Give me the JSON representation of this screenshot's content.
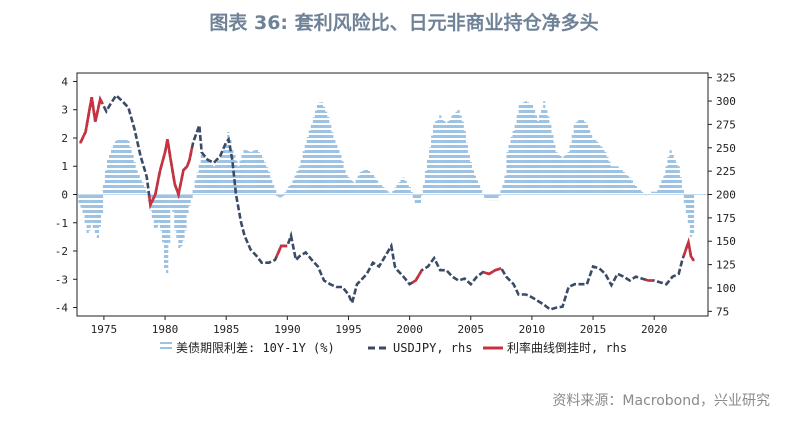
{
  "title": "图表 36: 套利风险比、日元非商业持仓净多头",
  "source": "资料来源：Macrobond，兴业研究",
  "chart_data": {
    "type": "bar+line",
    "xlim": [
      1972.8,
      2024.4
    ],
    "x_ticks": [
      "1975",
      "1980",
      "1985",
      "1990",
      "1995",
      "2000",
      "2005",
      "2010",
      "2015",
      "2020"
    ],
    "left_axis": {
      "ylim": [
        -4.3,
        4.3
      ],
      "ticks": [
        "4",
        "3",
        "2",
        "1",
        "0",
        "-1",
        "-2",
        "-3",
        "-4"
      ]
    },
    "right_axis": {
      "ylim": [
        70,
        330
      ],
      "ticks": [
        "325",
        "300",
        "275",
        "250",
        "225",
        "200",
        "175",
        "150",
        "125",
        "100",
        "75"
      ]
    },
    "legend": {
      "placement": "bottom",
      "entries": [
        "美债期限利差: 10Y-1Y (%)",
        "USDJPY, rhs",
        "利率曲线倒挂时, rhs"
      ]
    },
    "colors": {
      "spread": "#9cc2e3",
      "usdjpy": "#3b4a66",
      "inverted": "#c8323f",
      "title": "#6f8297"
    },
    "series": [
      {
        "name": "美债期限利差: 10Y-1Y (%)",
        "axis": "left",
        "style": "striped-bar",
        "x": [
          1973.0,
          1973.3,
          1973.7,
          1974.0,
          1974.5,
          1974.9,
          1975.0,
          1975.3,
          1975.7,
          1976.0,
          1976.5,
          1977.0,
          1977.3,
          1977.7,
          1978.2,
          1978.5,
          1978.8,
          1979.2,
          1979.5,
          1979.8,
          1980.1,
          1980.3,
          1980.55,
          1980.8,
          1981.2,
          1981.6,
          1981.9,
          1982.1,
          1982.5,
          1982.8,
          1983.0,
          1983.5,
          1984.0,
          1984.5,
          1985.0,
          1985.2,
          1985.5,
          1986.0,
          1986.5,
          1987.0,
          1987.5,
          1988.0,
          1988.5,
          1988.9,
          1989.2,
          1989.6,
          1990.0,
          1990.5,
          1991.0,
          1991.5,
          1992.0,
          1992.5,
          1992.8,
          1993.3,
          1993.8,
          1994.3,
          1994.8,
          1995.5,
          1996.0,
          1996.5,
          1997.0,
          1997.5,
          1998.0,
          1998.5,
          1998.9,
          1999.5,
          2000.1,
          2000.4,
          2000.9,
          2001.2,
          2001.6,
          2002.0,
          2002.5,
          2003.0,
          2003.5,
          2004.0,
          2004.4,
          2004.8,
          2005.2,
          2005.7,
          2006.1,
          2006.5,
          2007.2,
          2007.8,
          2008.0,
          2008.3,
          2008.7,
          2009.0,
          2009.5,
          2010.0,
          2010.5,
          2011.0,
          2011.5,
          2012.0,
          2012.5,
          2013.0,
          2013.5,
          2014.0,
          2014.5,
          2015.0,
          2015.5,
          2016.0,
          2016.5,
          2017.0,
          2017.5,
          2018.0,
          2018.5,
          2019.0,
          2019.4,
          2019.8,
          2020.2,
          2020.5,
          2020.8,
          2021.0,
          2021.3,
          2021.6,
          2022.0,
          2022.3,
          2022.5,
          2022.8,
          2023.0,
          2023.2
        ],
        "values": [
          -0.3,
          -0.6,
          -1.5,
          -1.0,
          -1.6,
          -0.5,
          0.4,
          1.2,
          1.7,
          1.9,
          2.0,
          1.9,
          1.5,
          0.8,
          0.4,
          0.1,
          -0.5,
          -1.3,
          -1.0,
          -1.5,
          -3.2,
          -2.0,
          -0.1,
          -1.2,
          -2.0,
          -1.5,
          -0.5,
          -0.3,
          0.5,
          1.0,
          1.5,
          1.2,
          1.0,
          1.3,
          1.8,
          2.3,
          1.6,
          1.0,
          1.6,
          1.5,
          1.6,
          1.3,
          0.8,
          0.3,
          -0.1,
          -0.1,
          0.2,
          0.5,
          1.0,
          1.8,
          2.5,
          3.2,
          3.3,
          2.8,
          2.0,
          1.5,
          0.7,
          0.4,
          0.8,
          0.9,
          0.7,
          0.4,
          0.2,
          0.0,
          0.3,
          0.6,
          0.2,
          -0.3,
          -0.3,
          0.5,
          1.5,
          2.5,
          2.8,
          2.5,
          2.8,
          3.0,
          2.5,
          1.5,
          0.8,
          0.3,
          -0.1,
          -0.2,
          -0.2,
          0.5,
          1.5,
          2.0,
          2.5,
          3.2,
          3.3,
          3.2,
          2.6,
          3.3,
          2.5,
          1.5,
          1.3,
          1.5,
          2.5,
          2.7,
          2.5,
          2.0,
          1.8,
          1.5,
          1.0,
          1.0,
          0.8,
          0.6,
          0.3,
          0.1,
          -0.05,
          0.1,
          0.1,
          0.4,
          0.6,
          1.0,
          1.6,
          1.3,
          1.0,
          0.3,
          -0.3,
          -1.0,
          -1.5,
          -1.4
        ]
      },
      {
        "name": "USDJPY, rhs",
        "axis": "right",
        "style": "dashed-line",
        "x": [
          1973.1,
          1973.5,
          1974.0,
          1974.3,
          1974.7,
          1975.2,
          1975.5,
          1976.0,
          1976.5,
          1977.0,
          1977.5,
          1978.0,
          1978.5,
          1978.8,
          1979.2,
          1979.6,
          1980.0,
          1980.2,
          1980.5,
          1980.8,
          1981.1,
          1981.5,
          1981.8,
          1982.0,
          1982.3,
          1982.8,
          1983.0,
          1983.5,
          1984.0,
          1984.5,
          1985.0,
          1985.2,
          1985.5,
          1985.8,
          1986.2,
          1986.5,
          1987.0,
          1987.5,
          1987.9,
          1988.5,
          1989.0,
          1989.5,
          1990.0,
          1990.3,
          1990.7,
          1991.0,
          1991.5,
          1992.0,
          1992.5,
          1993.0,
          1993.5,
          1994.0,
          1994.5,
          1995.0,
          1995.3,
          1995.7,
          1996.0,
          1996.5,
          1997.0,
          1997.5,
          1998.0,
          1998.5,
          1998.8,
          1999.0,
          1999.5,
          2000.0,
          2000.5,
          2001.0,
          2001.5,
          2002.0,
          2002.5,
          2003.0,
          2003.5,
          2004.0,
          2004.5,
          2005.0,
          2005.5,
          2006.0,
          2006.5,
          2007.0,
          2007.5,
          2007.9,
          2008.5,
          2008.9,
          2009.5,
          2010.0,
          2010.5,
          2011.0,
          2011.5,
          2012.0,
          2012.5,
          2013.0,
          2013.5,
          2014.0,
          2014.5,
          2015.0,
          2015.5,
          2016.0,
          2016.5,
          2017.0,
          2017.5,
          2018.0,
          2018.5,
          2019.0,
          2019.5,
          2020.0,
          2020.5,
          2021.0,
          2021.5,
          2022.0,
          2022.3,
          2022.8,
          2023.0,
          2023.2
        ],
        "values": [
          256,
          267,
          304,
          278,
          302,
          289,
          296,
          306,
          300,
          293,
          270,
          241,
          219,
          189,
          200,
          226,
          245,
          259,
          234,
          211,
          200,
          226,
          230,
          237,
          256,
          274,
          245,
          237,
          234,
          241,
          256,
          259,
          237,
          200,
          171,
          156,
          141,
          134,
          127,
          127,
          130,
          145,
          145,
          156,
          130,
          134,
          138,
          130,
          123,
          108,
          104,
          101,
          101,
          93,
          84,
          104,
          108,
          115,
          127,
          123,
          134,
          145,
          123,
          119,
          112,
          104,
          108,
          119,
          123,
          132,
          119,
          119,
          112,
          108,
          110,
          104,
          112,
          117,
          115,
          119,
          121,
          112,
          104,
          93,
          93,
          90,
          86,
          82,
          77,
          79,
          80,
          101,
          104,
          104,
          104,
          123,
          121,
          115,
          103,
          115,
          112,
          108,
          112,
          110,
          108,
          108,
          106,
          104,
          112,
          115,
          130,
          149,
          134,
          130
        ]
      },
      {
        "name": "利率曲线倒挂时, rhs",
        "axis": "right",
        "style": "solid-line",
        "periods": [
          [
            1973.0,
            1974.9
          ],
          [
            1978.7,
            1982.2
          ],
          [
            1989.1,
            1990.0
          ],
          [
            2000.2,
            2001.0
          ],
          [
            2006.0,
            2007.5
          ],
          [
            2019.3,
            2019.9
          ],
          [
            2022.4,
            2023.3
          ]
        ]
      }
    ]
  }
}
